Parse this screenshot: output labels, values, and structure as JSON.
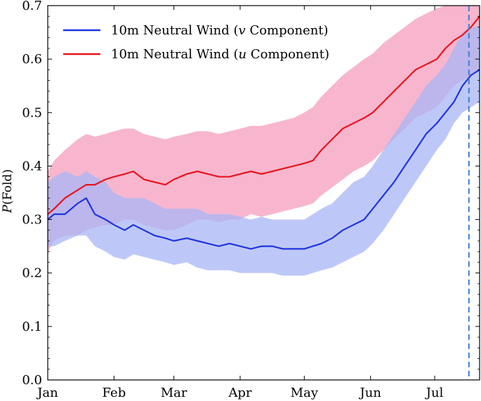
{
  "chart_data": {
    "type": "line",
    "title": "",
    "xlabel": "",
    "ylabel": "P(Fold)",
    "ylabel_italic_part": "P",
    "ylabel_rest": "(Fold)",
    "ylim": [
      0.0,
      0.7
    ],
    "xlim": [
      0,
      202
    ],
    "yticks": [
      0.0,
      0.1,
      0.2,
      0.3,
      0.4,
      0.5,
      0.6,
      0.7
    ],
    "ytick_labels": [
      "0.0",
      "0.1",
      "0.2",
      "0.3",
      "0.4",
      "0.5",
      "0.6",
      "0.7"
    ],
    "xticks": [
      0,
      31,
      59,
      90,
      120,
      151,
      181
    ],
    "xtick_labels": [
      "Jan",
      "Feb",
      "Mar",
      "Apr",
      "May",
      "Jun",
      "Jul"
    ],
    "grid": false,
    "legend_position": "top-left",
    "vline": {
      "x": 197,
      "color": "#3a7fd5",
      "style": "dashed"
    },
    "series": [
      {
        "name": "10m Neutral Wind (v Component)",
        "name_prefix": "10m Neutral Wind (",
        "name_var": "v",
        "name_suffix": " Component)",
        "color": "#1f35e0",
        "band_color": "#a8b6f5",
        "x": [
          0,
          3,
          8,
          14,
          18,
          22,
          27,
          31,
          36,
          40,
          45,
          50,
          55,
          59,
          65,
          70,
          75,
          80,
          85,
          90,
          95,
          100,
          105,
          110,
          115,
          120,
          124,
          128,
          133,
          138,
          143,
          148,
          152,
          157,
          162,
          167,
          172,
          177,
          182,
          186,
          190,
          194,
          198,
          202
        ],
        "y": [
          0.3,
          0.31,
          0.31,
          0.33,
          0.34,
          0.31,
          0.3,
          0.29,
          0.28,
          0.29,
          0.28,
          0.27,
          0.265,
          0.26,
          0.265,
          0.26,
          0.255,
          0.25,
          0.255,
          0.25,
          0.245,
          0.25,
          0.25,
          0.245,
          0.245,
          0.245,
          0.25,
          0.255,
          0.265,
          0.28,
          0.29,
          0.3,
          0.32,
          0.345,
          0.37,
          0.4,
          0.43,
          0.46,
          0.48,
          0.5,
          0.52,
          0.55,
          0.57,
          0.58
        ],
        "lower": [
          0.25,
          0.25,
          0.26,
          0.27,
          0.27,
          0.25,
          0.24,
          0.23,
          0.225,
          0.235,
          0.23,
          0.225,
          0.22,
          0.215,
          0.22,
          0.21,
          0.205,
          0.205,
          0.205,
          0.2,
          0.2,
          0.2,
          0.2,
          0.195,
          0.195,
          0.195,
          0.2,
          0.205,
          0.21,
          0.22,
          0.23,
          0.24,
          0.255,
          0.28,
          0.31,
          0.34,
          0.37,
          0.4,
          0.43,
          0.45,
          0.48,
          0.5,
          0.51,
          0.52
        ],
        "upper": [
          0.37,
          0.38,
          0.39,
          0.38,
          0.39,
          0.38,
          0.37,
          0.35,
          0.34,
          0.34,
          0.34,
          0.33,
          0.32,
          0.32,
          0.32,
          0.32,
          0.31,
          0.31,
          0.31,
          0.305,
          0.3,
          0.305,
          0.3,
          0.3,
          0.3,
          0.3,
          0.31,
          0.32,
          0.33,
          0.35,
          0.37,
          0.38,
          0.4,
          0.43,
          0.46,
          0.49,
          0.52,
          0.55,
          0.57,
          0.59,
          0.62,
          0.65,
          0.66,
          0.66
        ]
      },
      {
        "name": "10m Neutral Wind (u Component)",
        "name_prefix": "10m Neutral Wind (",
        "name_var": "u",
        "name_suffix": " Component)",
        "color": "#e8141c",
        "band_color": "#f6a9c6",
        "x": [
          0,
          3,
          8,
          14,
          18,
          22,
          27,
          31,
          36,
          40,
          45,
          50,
          55,
          59,
          65,
          70,
          75,
          80,
          85,
          90,
          95,
          100,
          105,
          110,
          115,
          120,
          124,
          128,
          133,
          138,
          143,
          148,
          152,
          157,
          162,
          167,
          172,
          177,
          182,
          186,
          190,
          194,
          198,
          202
        ],
        "y": [
          0.31,
          0.32,
          0.34,
          0.355,
          0.365,
          0.365,
          0.375,
          0.38,
          0.385,
          0.39,
          0.375,
          0.37,
          0.365,
          0.375,
          0.385,
          0.39,
          0.385,
          0.38,
          0.38,
          0.385,
          0.39,
          0.385,
          0.39,
          0.395,
          0.4,
          0.405,
          0.41,
          0.43,
          0.45,
          0.47,
          0.48,
          0.49,
          0.5,
          0.52,
          0.54,
          0.56,
          0.58,
          0.59,
          0.6,
          0.62,
          0.635,
          0.645,
          0.66,
          0.68
        ],
        "lower": [
          0.24,
          0.26,
          0.27,
          0.27,
          0.28,
          0.285,
          0.29,
          0.29,
          0.3,
          0.3,
          0.29,
          0.285,
          0.28,
          0.28,
          0.29,
          0.3,
          0.3,
          0.295,
          0.3,
          0.3,
          0.31,
          0.305,
          0.31,
          0.315,
          0.32,
          0.325,
          0.33,
          0.345,
          0.36,
          0.375,
          0.39,
          0.4,
          0.41,
          0.43,
          0.45,
          0.47,
          0.49,
          0.5,
          0.51,
          0.53,
          0.55,
          0.56,
          0.57,
          0.58
        ],
        "upper": [
          0.39,
          0.41,
          0.43,
          0.45,
          0.46,
          0.455,
          0.46,
          0.465,
          0.47,
          0.47,
          0.46,
          0.455,
          0.45,
          0.455,
          0.46,
          0.465,
          0.465,
          0.46,
          0.465,
          0.47,
          0.475,
          0.475,
          0.48,
          0.485,
          0.49,
          0.5,
          0.51,
          0.53,
          0.55,
          0.57,
          0.585,
          0.6,
          0.61,
          0.63,
          0.645,
          0.66,
          0.675,
          0.685,
          0.695,
          0.7,
          0.7,
          0.7,
          0.7,
          0.7
        ]
      }
    ]
  }
}
